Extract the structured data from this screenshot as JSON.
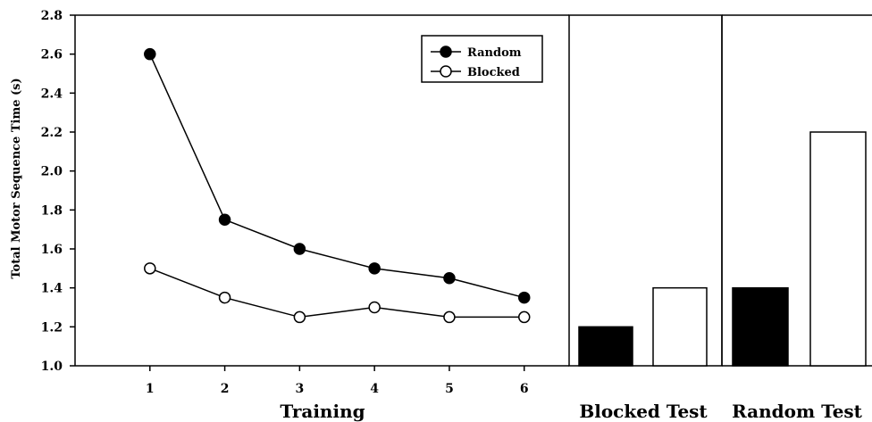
{
  "chart_data": [
    {
      "type": "line",
      "xlabel": "Training",
      "ylabel": "Total Motor Sequence Time (s)",
      "x": [
        1,
        2,
        3,
        4,
        5,
        6
      ],
      "xlim": [
        0,
        6.6
      ],
      "ylim": [
        1.0,
        2.8
      ],
      "yticks": [
        "1.0",
        "1.2",
        "1.4",
        "1.6",
        "1.8",
        "2.0",
        "2.2",
        "2.4",
        "2.6",
        "2.8"
      ],
      "xticks": [
        "1",
        "2",
        "3",
        "4",
        "5",
        "6"
      ],
      "grid": false,
      "legend_position": "top-right",
      "series": [
        {
          "name": "Random",
          "marker": "filled-circle",
          "color": "#000000",
          "values": [
            2.6,
            1.75,
            1.6,
            1.5,
            1.45,
            1.35
          ]
        },
        {
          "name": "Blocked",
          "marker": "open-circle",
          "color": "#000000",
          "values": [
            1.5,
            1.35,
            1.25,
            1.3,
            1.25,
            1.25
          ]
        }
      ]
    },
    {
      "type": "bar",
      "xlabel": "Blocked Test",
      "ylim": [
        1.0,
        2.8
      ],
      "bars": [
        {
          "group": "Random",
          "fill": "#000000",
          "value": 1.2
        },
        {
          "group": "Blocked",
          "fill": "#ffffff",
          "value": 1.4
        }
      ]
    },
    {
      "type": "bar",
      "xlabel": "Random Test",
      "ylim": [
        1.0,
        2.8
      ],
      "bars": [
        {
          "group": "Random",
          "fill": "#000000",
          "value": 1.4
        },
        {
          "group": "Blocked",
          "fill": "#ffffff",
          "value": 2.2
        }
      ]
    }
  ]
}
